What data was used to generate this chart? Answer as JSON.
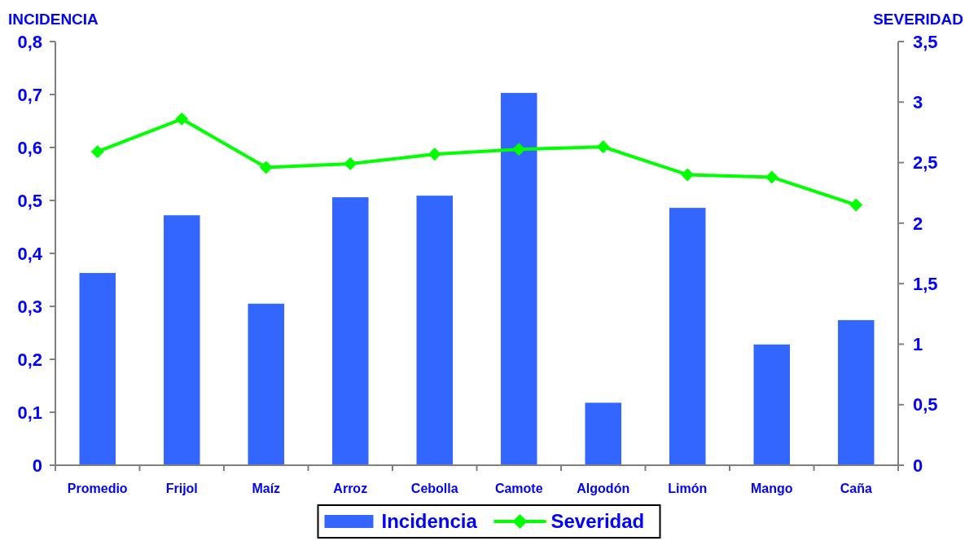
{
  "chart_data": {
    "type": "bar",
    "ylabel": "INCIDENCIA",
    "y2label": "SEVERIDAD",
    "categories": [
      "Promedio",
      "Frijol",
      "Maíz",
      "Arroz",
      "Cebolla",
      "Camote",
      "Algodón",
      "Limón",
      "Mango",
      "Caña"
    ],
    "series": [
      {
        "name": "Incidencia",
        "color": "#3366ff",
        "values": [
          0.363,
          0.472,
          0.305,
          0.506,
          0.509,
          0.703,
          0.118,
          0.486,
          0.228,
          0.274
        ]
      },
      {
        "name": "Severidad",
        "type": "line",
        "axis": "y2",
        "color": "#00ff00",
        "marker": "diamond",
        "values": [
          2.59,
          2.86,
          2.46,
          2.49,
          2.57,
          2.61,
          2.63,
          2.4,
          2.38,
          2.15
        ]
      }
    ],
    "ylim": [
      0,
      0.8
    ],
    "yticks": [
      0,
      {
        "value": 0.1,
        "label": "0,1"
      },
      {
        "value": 0.2,
        "label": "0,2"
      },
      {
        "value": 0.3,
        "label": "0,3"
      },
      {
        "value": 0.4,
        "label": "0,4"
      },
      {
        "value": 0.5,
        "label": "0,5"
      },
      {
        "value": 0.6,
        "label": "0,6"
      },
      {
        "value": 0.7,
        "label": "0,7"
      },
      {
        "value": 0.8,
        "label": "0,8"
      }
    ],
    "y2lim": [
      0,
      3.5
    ],
    "y2ticks": [
      0,
      {
        "value": 0.5,
        "label": "0,5"
      },
      1,
      {
        "value": 1.5,
        "label": "1,5"
      },
      2,
      {
        "value": 2.5,
        "label": "2,5"
      },
      3,
      {
        "value": 3.5,
        "label": "3,5"
      }
    ],
    "legend": "bottom",
    "grid": false
  }
}
